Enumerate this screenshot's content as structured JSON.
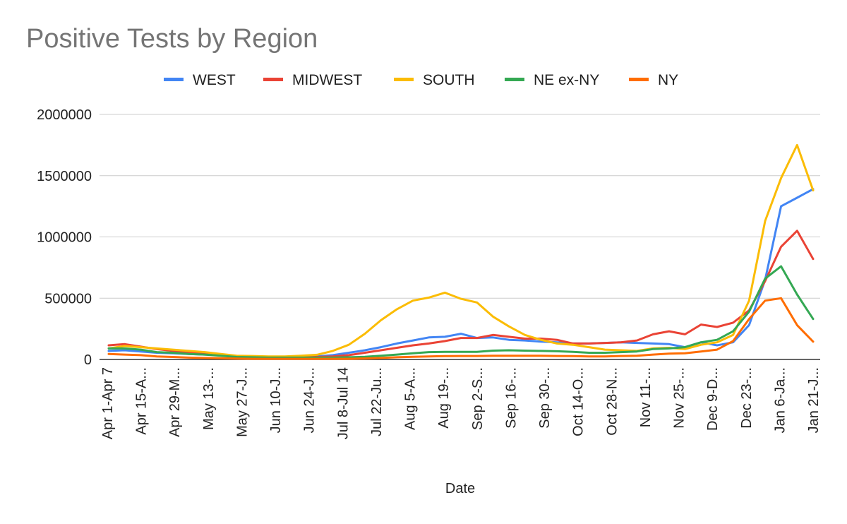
{
  "chart_data": {
    "type": "line",
    "title": "Positive Tests by Region",
    "xlabel": "Date",
    "ylabel": "",
    "ylim": [
      0,
      2000000
    ],
    "yticks": [
      0,
      500000,
      1000000,
      1500000,
      2000000
    ],
    "grid": true,
    "legend": "top",
    "xtick_labels": [
      "Apr 1-Apr 7",
      "Apr 15-A...",
      "Apr 29-M...",
      "May 13-...",
      "May 27-J...",
      "Jun 10-J...",
      "Jun 24-J...",
      "Jul 8-Jul 14",
      "Jul 22-Ju...",
      "Aug 5-A...",
      "Aug 19-...",
      "Sep 2-S...",
      "Sep 16-...",
      "Sep 30-...",
      "Oct 14-O...",
      "Oct 28-N...",
      "Nov 11-...",
      "Nov 25-...",
      "Dec 9-D...",
      "Dec 23-...",
      "Jan 6-Ja...",
      "Jan 21-J..."
    ],
    "series": [
      {
        "name": "WEST",
        "color": "#4285f4",
        "values": [
          70000,
          75000,
          65000,
          55000,
          50000,
          45000,
          40000,
          35000,
          25000,
          20000,
          18000,
          18000,
          22000,
          25000,
          35000,
          55000,
          75000,
          100000,
          130000,
          155000,
          180000,
          185000,
          210000,
          175000,
          180000,
          160000,
          155000,
          145000,
          140000,
          130000,
          130000,
          135000,
          140000,
          135000,
          130000,
          125000,
          100000,
          140000,
          115000,
          140000,
          280000,
          650000,
          1250000,
          1320000,
          1390000
        ]
      },
      {
        "name": "MIDWEST",
        "color": "#ea4335",
        "values": [
          115000,
          125000,
          105000,
          85000,
          70000,
          55000,
          45000,
          35000,
          22000,
          18000,
          15000,
          15000,
          18000,
          20000,
          25000,
          35000,
          55000,
          75000,
          95000,
          115000,
          130000,
          150000,
          175000,
          175000,
          200000,
          185000,
          170000,
          170000,
          160000,
          130000,
          130000,
          135000,
          140000,
          155000,
          205000,
          230000,
          205000,
          285000,
          265000,
          300000,
          400000,
          640000,
          920000,
          1050000,
          820000
        ]
      },
      {
        "name": "SOUTH",
        "color": "#fbbc04",
        "values": [
          90000,
          110000,
          100000,
          90000,
          80000,
          70000,
          60000,
          45000,
          30000,
          28000,
          25000,
          25000,
          30000,
          38000,
          70000,
          120000,
          210000,
          320000,
          410000,
          480000,
          505000,
          545000,
          495000,
          465000,
          350000,
          270000,
          200000,
          160000,
          130000,
          120000,
          100000,
          80000,
          75000,
          70000,
          90000,
          95000,
          85000,
          120000,
          140000,
          200000,
          480000,
          1130000,
          1480000,
          1750000,
          1380000
        ]
      },
      {
        "name": "NE ex-NY",
        "color": "#34a853",
        "values": [
          90000,
          90000,
          80000,
          60000,
          55000,
          45000,
          40000,
          30000,
          20000,
          18000,
          15000,
          15000,
          15000,
          15000,
          15000,
          18000,
          22000,
          30000,
          40000,
          50000,
          60000,
          62000,
          62000,
          62000,
          72000,
          75000,
          72000,
          70000,
          67000,
          62000,
          55000,
          55000,
          60000,
          65000,
          85000,
          90000,
          100000,
          140000,
          160000,
          230000,
          390000,
          660000,
          760000,
          530000,
          330000
        ]
      },
      {
        "name": "NY",
        "color": "#ff6d01",
        "values": [
          45000,
          40000,
          35000,
          25000,
          20000,
          15000,
          12000,
          10000,
          7000,
          5000,
          5000,
          5000,
          5000,
          5000,
          5000,
          5000,
          8000,
          12000,
          18000,
          22000,
          25000,
          27000,
          28000,
          28000,
          30000,
          30000,
          30000,
          30000,
          28000,
          27000,
          25000,
          25000,
          28000,
          30000,
          40000,
          48000,
          50000,
          65000,
          80000,
          150000,
          330000,
          480000,
          500000,
          280000,
          145000
        ]
      }
    ]
  }
}
